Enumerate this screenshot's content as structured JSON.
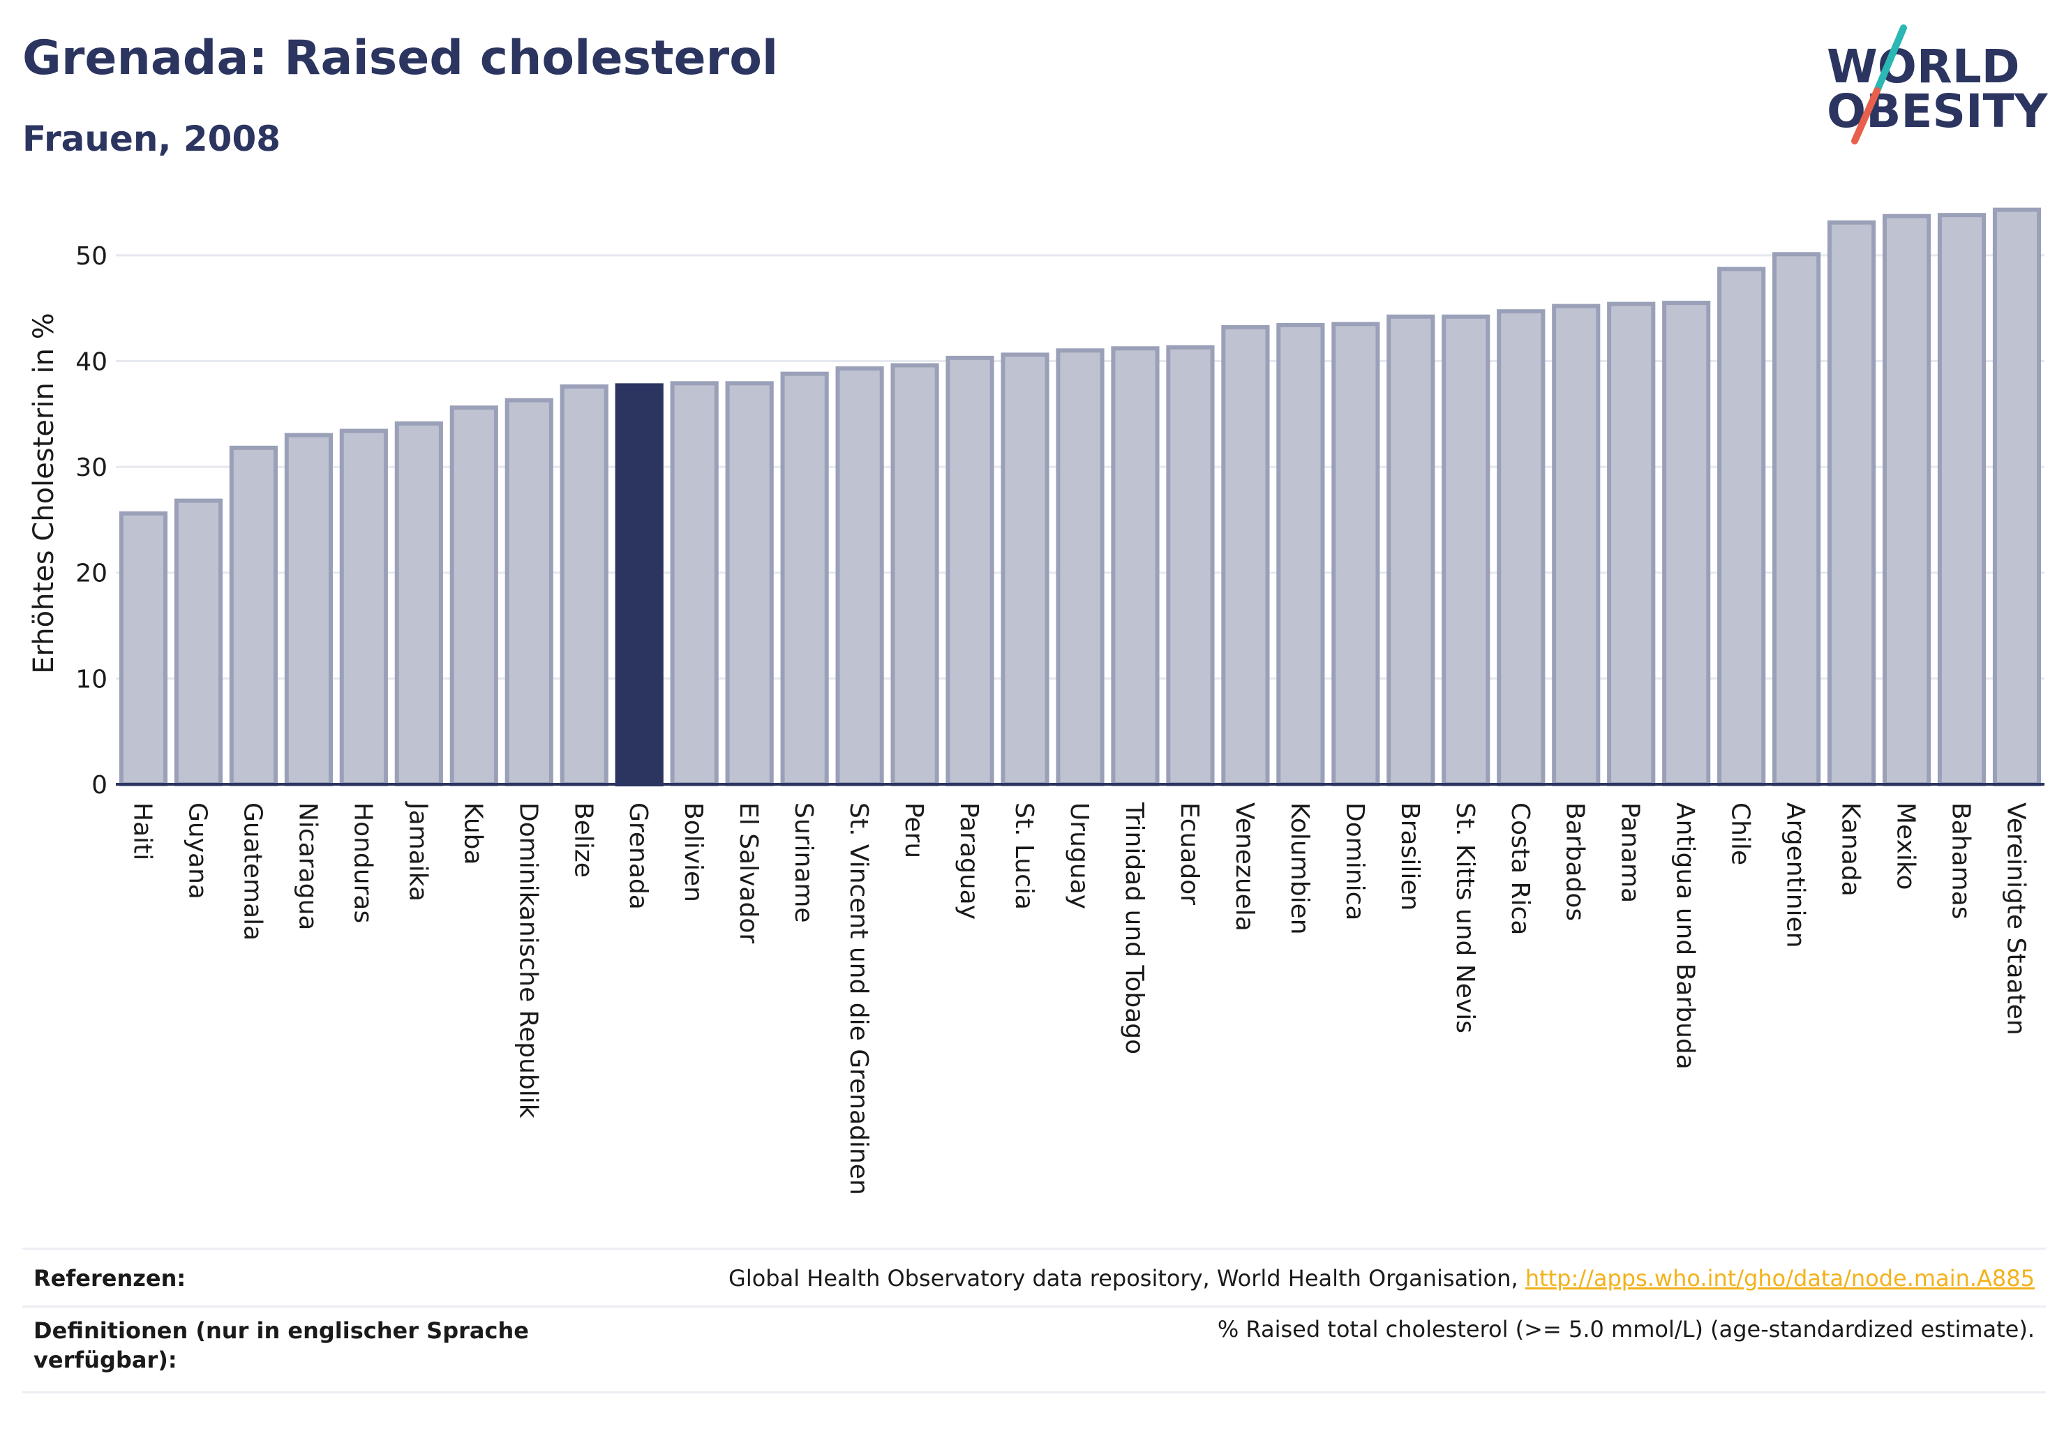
{
  "header": {
    "title": "Grenada: Raised cholesterol",
    "subtitle": "Frauen, 2008"
  },
  "logo": {
    "line1": "WORLD",
    "line2": "OBESITY"
  },
  "colors": {
    "bar": "#bfc2d0",
    "bar_border": "#9aa0b8",
    "highlight": "#2b3560",
    "grid": "#e6e8ef",
    "axis": "#2b3560",
    "link": "#f2b21b"
  },
  "chart_data": {
    "type": "bar",
    "title": "Grenada: Raised cholesterol",
    "subtitle": "Frauen, 2008",
    "ylabel": "Erhöhtes Cholesterin in %",
    "xlabel": "",
    "ylim": [
      0,
      55
    ],
    "yticks": [
      0,
      10,
      20,
      30,
      40,
      50
    ],
    "grid": true,
    "highlight": "Grenada",
    "categories": [
      "Haiti",
      "Guyana",
      "Guatemala",
      "Nicaragua",
      "Honduras",
      "Jamaika",
      "Kuba",
      "Dominikanische Republik",
      "Belize",
      "Grenada",
      "Bolivien",
      "El Salvador",
      "Suriname",
      "St. Vincent und die Grenadinen",
      "Peru",
      "Paraguay",
      "St. Lucia",
      "Uruguay",
      "Trinidad und Tobago",
      "Ecuador",
      "Venezuela",
      "Kolumbien",
      "Dominica",
      "Brasilien",
      "St. Kitts und Nevis",
      "Costa Rica",
      "Barbados",
      "Panama",
      "Antigua und Barbuda",
      "Chile",
      "Argentinien",
      "Kanada",
      "Mexiko",
      "Bahamas",
      "Vereinigte Staaten"
    ],
    "values": [
      25.6,
      26.8,
      31.8,
      33.0,
      33.4,
      34.1,
      35.6,
      36.3,
      37.6,
      37.7,
      37.9,
      37.9,
      38.8,
      39.3,
      39.6,
      40.3,
      40.6,
      41.0,
      41.2,
      41.3,
      43.2,
      43.4,
      43.5,
      44.2,
      44.2,
      44.7,
      45.2,
      45.4,
      45.5,
      48.7,
      50.1,
      53.1,
      53.7,
      53.8,
      54.3
    ]
  },
  "footer": {
    "references_label": "Referenzen:",
    "references_text": "Global Health Observatory data repository, World Health Organisation, ",
    "references_link": "http://apps.who.int/gho/data/node.main.A885",
    "definitions_label": "Definitionen (nur in englischer Sprache verfügbar):",
    "definitions_text": "% Raised total cholesterol (>= 5.0 mmol/L) (age-standardized estimate)."
  }
}
